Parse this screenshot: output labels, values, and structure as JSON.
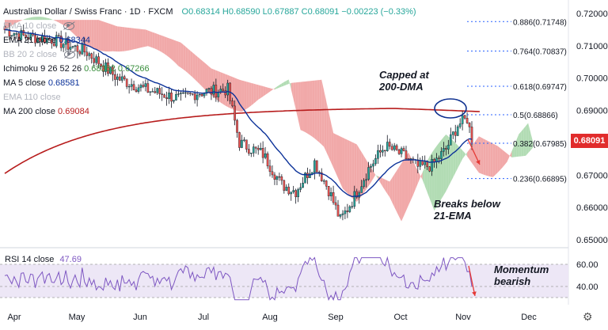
{
  "header": {
    "symbol": "Australian Dollar / Swiss Franc · 1D · FXCM",
    "ohlc": "O0.68314 H0.68590 L0.67887 C0.68091 −0.00223 (−0.33%)",
    "indicators": [
      {
        "label": "EMA 10 close",
        "value": "",
        "faded": true,
        "eye": true
      },
      {
        "label": "EMA 21 close",
        "value": "0.68344",
        "value_color": "#0c3299",
        "faded": false,
        "eye": false
      },
      {
        "label": "BB 20 2 close",
        "value": "",
        "faded": true,
        "eye": true
      },
      {
        "label": "Ichimoku 9 26 52 26",
        "value": "0.68362  0.67266",
        "value_color": "#388e3c",
        "faded": false,
        "eye": false
      },
      {
        "label": "MA 5 close",
        "value": "0.68581",
        "value_color": "#0c3299",
        "faded": false,
        "eye": false
      },
      {
        "label": "EMA 110 close",
        "value": "",
        "faded": true,
        "eye": false
      },
      {
        "label": "MA 200 close",
        "value": "0.69084",
        "value_color": "#b71c1c",
        "faded": false,
        "eye": false
      }
    ]
  },
  "price_axis": [
    "0.72000",
    "0.71000",
    "0.70000",
    "0.69000",
    "0.68000",
    "0.67000",
    "0.66000",
    "0.65000"
  ],
  "current_price": "0.68091",
  "fib_levels": [
    {
      "label": "0.886(0.71748)",
      "y": 0.71748
    },
    {
      "label": "0.764(0.70837)",
      "y": 0.70837
    },
    {
      "label": "0.618(0.69747)",
      "y": 0.69747
    },
    {
      "label": "0.5(0.68866)",
      "y": 0.68866
    },
    {
      "label": "0.382(0.67985)",
      "y": 0.67985
    },
    {
      "label": "0.236(0.66895)",
      "y": 0.66895
    }
  ],
  "annotations": {
    "capped": [
      "Capped at",
      "200-DMA"
    ],
    "breaks": [
      "Breaks below",
      "21-EMA"
    ],
    "momentum": [
      "Momentum",
      "bearish"
    ]
  },
  "rsi": {
    "label": "RSI 14 close",
    "value": "47.69",
    "axis": [
      "60.00",
      "40.00"
    ]
  },
  "time_axis": [
    "Apr",
    "May",
    "Jun",
    "Jul",
    "Aug",
    "Sep",
    "Oct",
    "Nov",
    "Dec"
  ],
  "colors": {
    "up": "#26a69a",
    "down": "#ef5350",
    "ema21": "#0c3299",
    "ma200": "#b71c1c",
    "cloud_bull": "#a5d6a7",
    "cloud_bear": "#ef9a9a",
    "rsi_line": "#7e57c2",
    "rsi_band": "#ede7f6",
    "arrow": "#e53935"
  }
}
